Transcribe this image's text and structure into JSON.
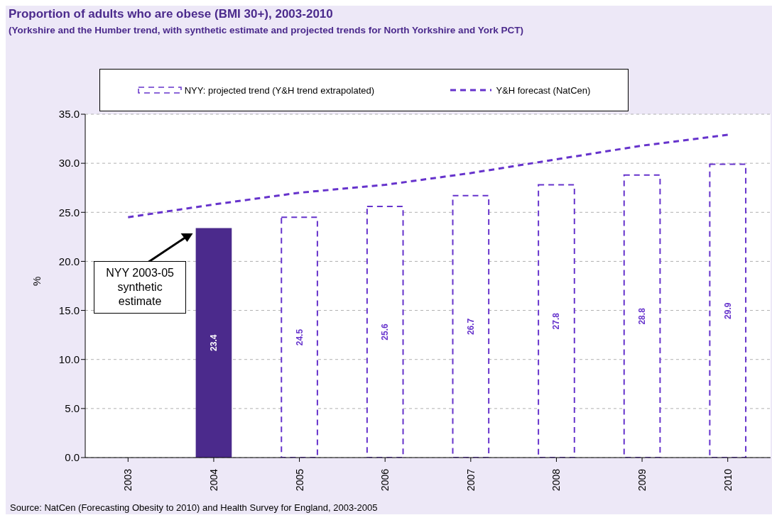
{
  "chart_data": {
    "type": "bar",
    "title": "Proportion of adults who are obese (BMI 30+), 2003-2010",
    "subtitle": "(Yorkshire and the Humber trend, with synthetic estimate and projected trends for North Yorkshire and York PCT)",
    "ylabel": "%",
    "categories": [
      "2003",
      "2004",
      "2005",
      "2006",
      "2007",
      "2008",
      "2009",
      "2010"
    ],
    "series": [
      {
        "color": "#4b2a8c",
        "values": [
          null,
          23.4,
          null,
          null,
          null,
          null,
          null,
          null
        ],
        "value_labels": [
          null,
          "23.4",
          null,
          null,
          null,
          null,
          null,
          null
        ]
      },
      {
        "name": "NYY: projected trend (Y&H trend extrapolated)",
        "color": "#6633cc",
        "line_style": "dashed",
        "values": [
          null,
          null,
          24.5,
          25.6,
          26.7,
          27.8,
          28.8,
          29.9
        ],
        "value_labels": [
          null,
          null,
          "24.5",
          "25.6",
          "26.7",
          "27.8",
          "28.8",
          "29.9"
        ]
      },
      {
        "type": "line",
        "name": "Y&H forecast (NatCen)",
        "color": "#6633cc",
        "line_style": "dashed",
        "values": [
          24.5,
          25.8,
          27.0,
          27.8,
          29.0,
          30.4,
          31.8,
          32.9
        ]
      }
    ],
    "ylim": [
      0,
      35
    ],
    "yticks": [
      {
        "value": 0,
        "label": "0.0"
      },
      {
        "value": 5,
        "label": "5.0"
      },
      {
        "value": 10,
        "label": "10.0"
      },
      {
        "value": 15,
        "label": "15.0"
      },
      {
        "value": 20,
        "label": "20.0"
      },
      {
        "value": 25,
        "label": "25.0"
      },
      {
        "value": 30,
        "label": "30.0"
      },
      {
        "value": 35,
        "label": "35.0"
      }
    ],
    "grid": "y",
    "legend": "top",
    "marker": "none",
    "annotations": [
      "NYY 2003-05 synthetic estimate",
      "Source: NatCen (Forecasting Obesity to 2010) and Health Survey for England, 2003-2005"
    ]
  }
}
